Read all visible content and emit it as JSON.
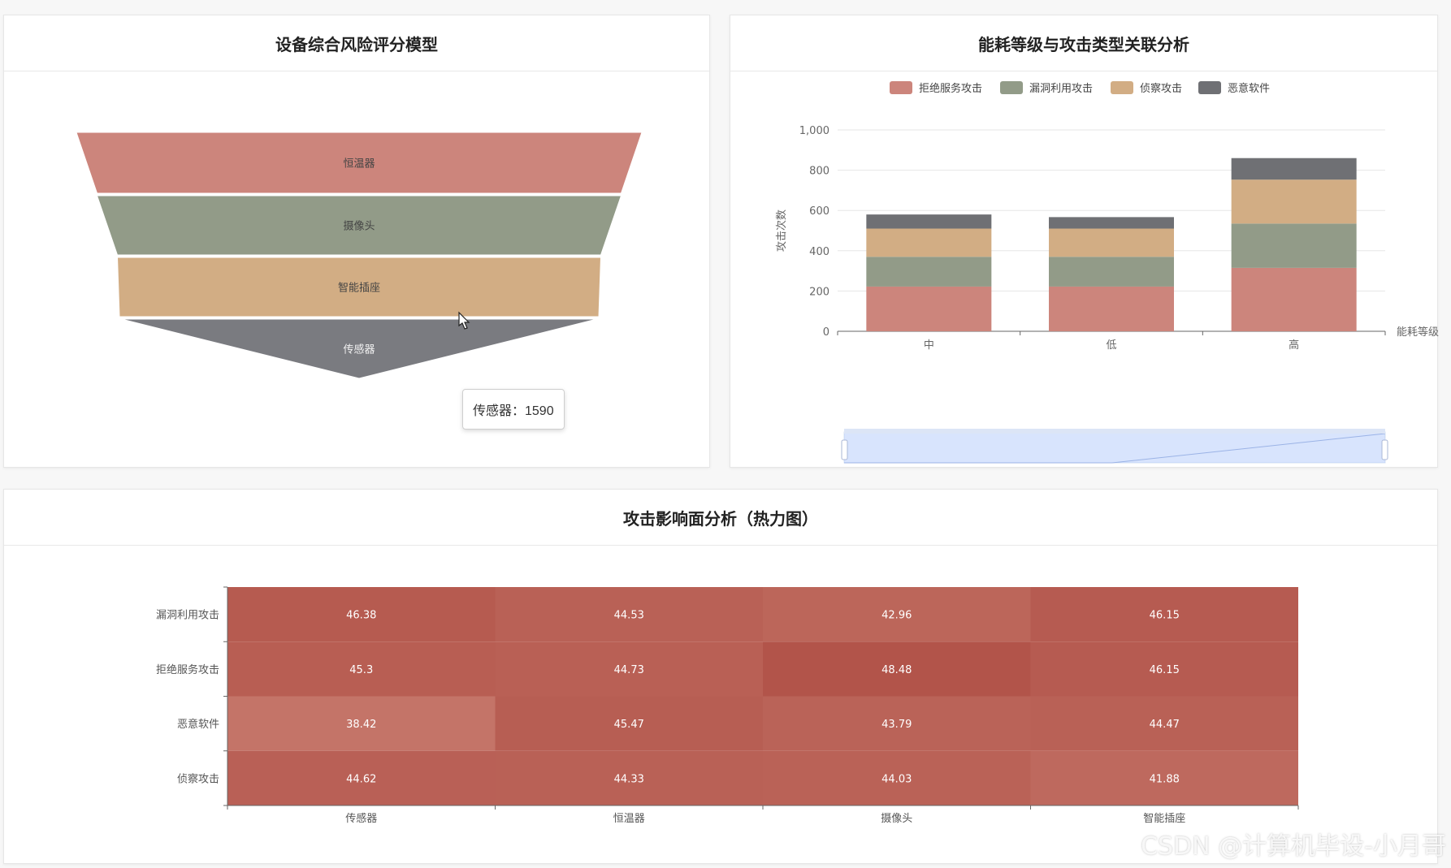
{
  "panels": {
    "funnel_title": "设备综合风险评分模型",
    "bar_title": "能耗等级与攻击类型关联分析",
    "heat_title": "攻击影响面分析（热力图）"
  },
  "tooltip": {
    "label": "传感器",
    "value": "1590",
    "text": "传感器：1590"
  },
  "watermark": "CSDN @计算机毕设-小月哥",
  "colors": {
    "rose": "#cc857c",
    "sage": "#929b88",
    "tan": "#d2ad84",
    "slate": "#6f7074",
    "heat_low": "#c0675d",
    "heat_high": "#b2544a"
  },
  "chart_data": [
    {
      "type": "funnel",
      "categories": [
        "恒温器",
        "摄像头",
        "智能插座",
        "传感器"
      ],
      "colors": [
        "#cc857c",
        "#929b88",
        "#d2ad84",
        "#7a7b80"
      ],
      "highlight": "智能插座"
    },
    {
      "type": "bar",
      "stacked": true,
      "categories": [
        "中",
        "低",
        "高"
      ],
      "series": [
        {
          "name": "拒绝服务攻击",
          "values": [
            222,
            222,
            315
          ],
          "color": "#cc857c"
        },
        {
          "name": "漏洞利用攻击",
          "values": [
            148,
            148,
            220
          ],
          "color": "#929b88"
        },
        {
          "name": "侦察攻击",
          "values": [
            140,
            140,
            218
          ],
          "color": "#d2ad84"
        },
        {
          "name": "恶意软件",
          "values": [
            70,
            57,
            107
          ],
          "color": "#6f7074"
        }
      ],
      "ylabel": "攻击次数",
      "xlabel": "能耗等级",
      "ylim": [
        0,
        1000
      ],
      "yticks": [
        "0",
        "200",
        "400",
        "600",
        "800",
        "1,000"
      ],
      "legend": "top",
      "grid": true
    },
    {
      "type": "heatmap",
      "x": [
        "传感器",
        "恒温器",
        "摄像头",
        "智能插座"
      ],
      "y": [
        "漏洞利用攻击",
        "拒绝服务攻击",
        "恶意软件",
        "侦察攻击"
      ],
      "values": [
        [
          46.38,
          44.53,
          42.96,
          46.15
        ],
        [
          45.3,
          44.73,
          48.48,
          46.15
        ],
        [
          38.42,
          45.47,
          43.79,
          44.47
        ],
        [
          44.62,
          44.33,
          44.03,
          41.88
        ]
      ],
      "labels": [
        [
          "46.38",
          "44.53",
          "42.96",
          "46.15"
        ],
        [
          "45.3",
          "44.73",
          "48.48",
          "46.15"
        ],
        [
          "38.42",
          "45.47",
          "43.79",
          "44.47"
        ],
        [
          "44.62",
          "44.33",
          "44.03",
          "41.88"
        ]
      ]
    }
  ]
}
